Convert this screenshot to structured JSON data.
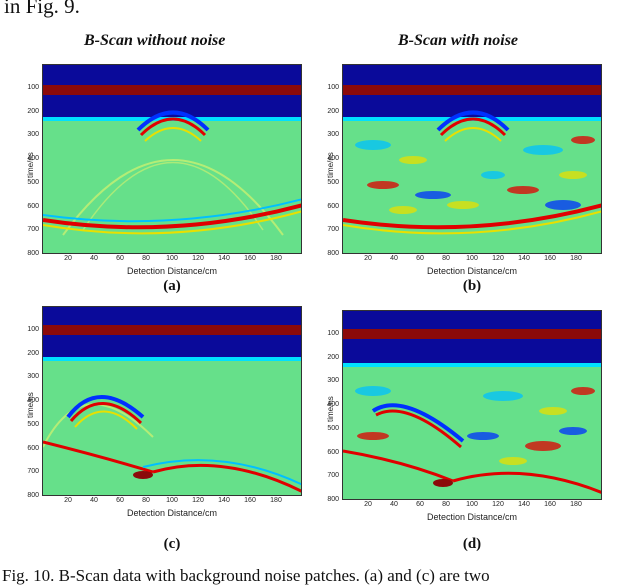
{
  "top_text": "in Fig. 9.",
  "col_titles": [
    "B-Scan without noise",
    "B-Scan with noise"
  ],
  "y_ticks": [
    "100",
    "200",
    "300",
    "400",
    "500",
    "600",
    "700",
    "800"
  ],
  "x_ticks": [
    "20",
    "40",
    "60",
    "80",
    "100",
    "120",
    "140",
    "160",
    "180"
  ],
  "y_label": "time/ns",
  "x_label": "Detection Distance/cm",
  "panel_labels": [
    "(a)",
    "(b)",
    "(c)",
    "(d)"
  ],
  "caption": "Fig. 10.  B-Scan data with background noise patches. (a) and (c) are two",
  "colors": {
    "background": "#66e08a",
    "dark_blue": "#0a0a9a",
    "dark_red": "#8b0a0a",
    "cyan": "#00e0ff",
    "red": "#e00000",
    "yellow": "#e8e000",
    "blue": "#0030ff"
  }
}
